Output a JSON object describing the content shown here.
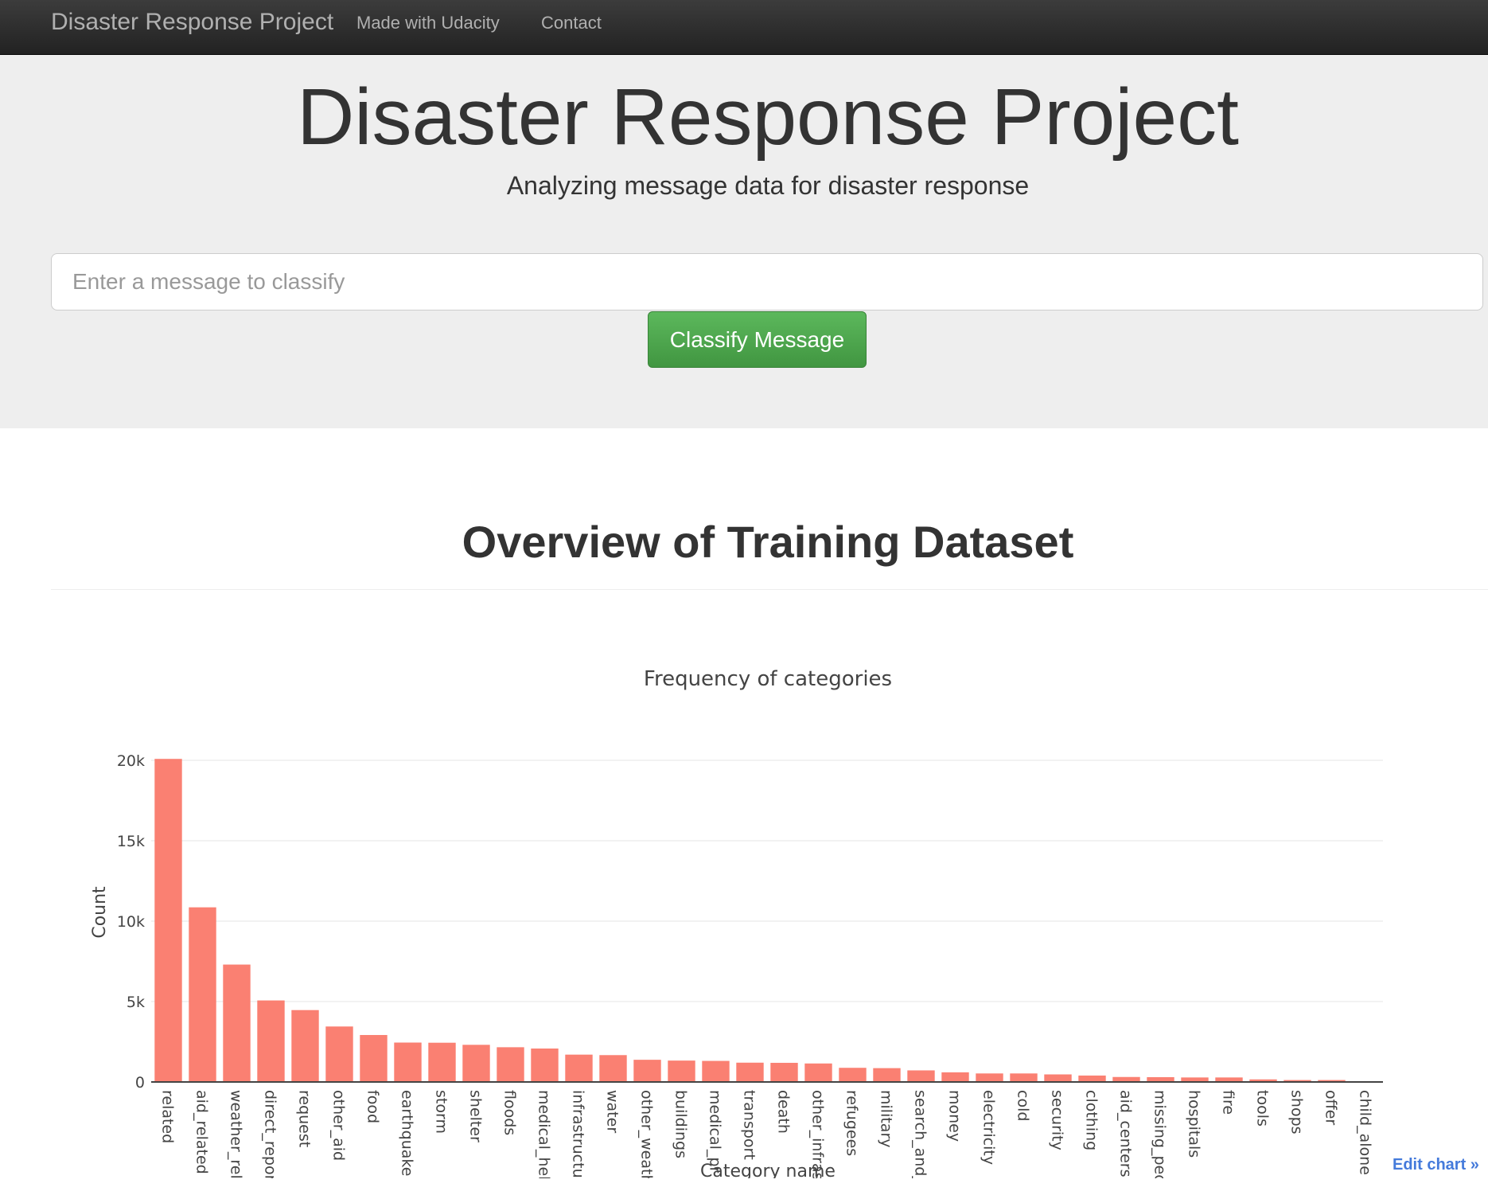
{
  "navbar": {
    "brand": "Disaster Response Project",
    "links": [
      {
        "label": "Made with Udacity"
      },
      {
        "label": "Contact"
      }
    ]
  },
  "hero": {
    "title": "Disaster Response Project",
    "subtitle": "Analyzing message data for disaster response",
    "input_placeholder": "Enter a message to classify",
    "button_label": "Classify Message"
  },
  "section": {
    "title": "Overview of Training Dataset"
  },
  "edit_chart_label": "Edit chart »",
  "chart_data": {
    "type": "bar",
    "title": "Frequency of categories",
    "xlabel": "Category name",
    "ylabel": "Count",
    "ylim": [
      0,
      20100
    ],
    "yticks": [
      0,
      5000,
      10000,
      15000,
      20000
    ],
    "ytick_labels": [
      "0",
      "5k",
      "10k",
      "15k",
      "20k"
    ],
    "grid": true,
    "bar_color": "#fa8072",
    "categories": [
      "related",
      "aid_related",
      "weather_related",
      "direct_report",
      "request",
      "other_aid",
      "food",
      "earthquake",
      "storm",
      "shelter",
      "floods",
      "medical_help",
      "infrastructure_related",
      "water",
      "other_weather",
      "buildings",
      "medical_products",
      "transport",
      "death",
      "other_infrastructure",
      "refugees",
      "military",
      "search_and_rescue",
      "money",
      "electricity",
      "cold",
      "security",
      "clothing",
      "aid_centers",
      "missing_people",
      "hospitals",
      "fire",
      "tools",
      "shops",
      "offer",
      "child_alone"
    ],
    "tick_labels": [
      "related",
      "aid_related",
      "weather_rel",
      "direct_repor",
      "request",
      "other_aid",
      "food",
      "earthquake",
      "storm",
      "shelter",
      "floods",
      "medical_hel",
      "infrastructu",
      "water",
      "other_weath",
      "buildings",
      "medical_pr",
      "transport",
      "death",
      "other_infras",
      "refugees",
      "military",
      "search_and_",
      "money",
      "electricity",
      "cold",
      "security",
      "clothing",
      "aid_centers",
      "missing_peo",
      "hospitals",
      "fire",
      "tools",
      "shops",
      "offer",
      "child_alone"
    ],
    "values": [
      20090,
      10860,
      7300,
      5070,
      4470,
      3450,
      2920,
      2450,
      2440,
      2310,
      2160,
      2080,
      1700,
      1670,
      1380,
      1330,
      1310,
      1200,
      1190,
      1150,
      880,
      860,
      720,
      600,
      530,
      530,
      470,
      400,
      310,
      300,
      280,
      280,
      160,
      120,
      120,
      0
    ]
  }
}
